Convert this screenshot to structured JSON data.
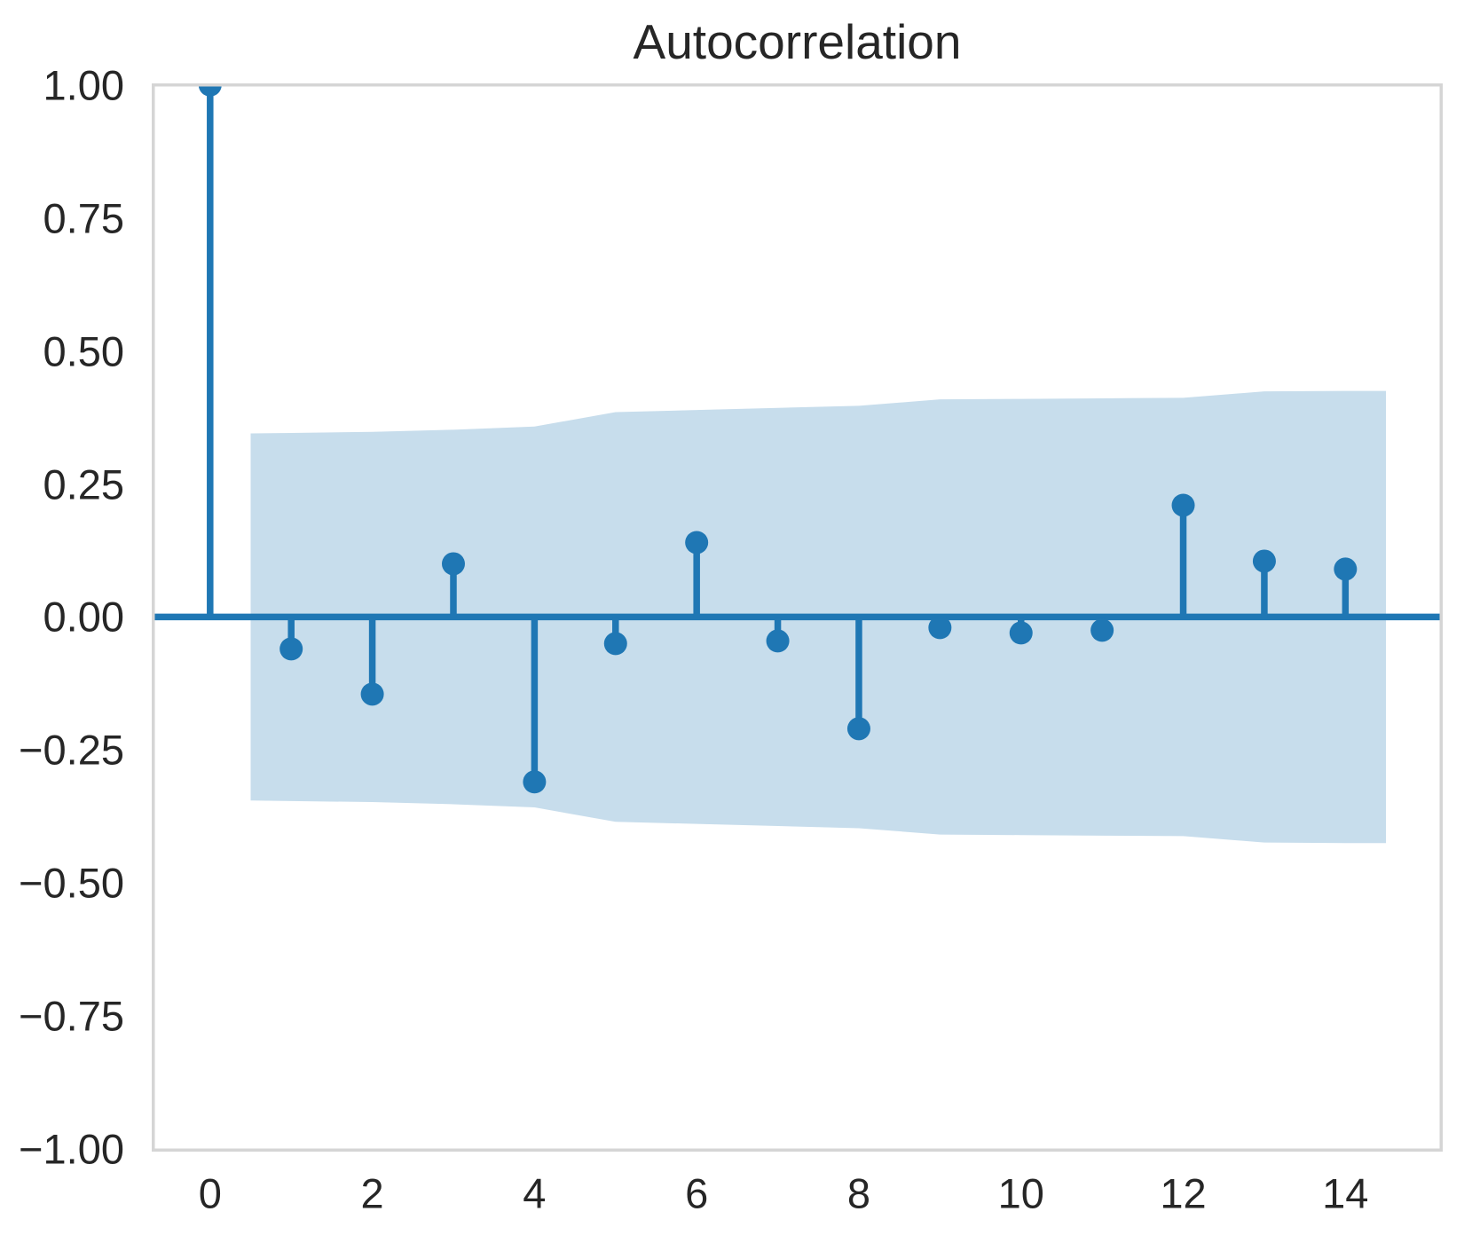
{
  "chart_data": {
    "type": "stem",
    "title": "Autocorrelation",
    "xlabel": "",
    "ylabel": "",
    "grid": false,
    "legend": null,
    "x": [
      0,
      1,
      2,
      3,
      4,
      5,
      6,
      7,
      8,
      9,
      10,
      11,
      12,
      13,
      14
    ],
    "values": [
      1.0,
      -0.06,
      -0.145,
      0.1,
      -0.31,
      -0.05,
      0.14,
      -0.045,
      -0.21,
      -0.02,
      -0.03,
      -0.025,
      0.21,
      0.105,
      0.09
    ],
    "confidence_band": {
      "x": [
        0.5,
        1,
        2,
        3,
        4,
        5,
        6,
        7,
        8,
        9,
        10,
        11,
        12,
        13,
        14,
        14.5
      ],
      "upper": [
        0.345,
        0.346,
        0.348,
        0.352,
        0.358,
        0.385,
        0.389,
        0.393,
        0.397,
        0.409,
        0.41,
        0.411,
        0.412,
        0.424,
        0.425,
        0.425
      ],
      "lower": [
        -0.345,
        -0.346,
        -0.348,
        -0.352,
        -0.358,
        -0.385,
        -0.389,
        -0.393,
        -0.397,
        -0.409,
        -0.41,
        -0.411,
        -0.412,
        -0.424,
        -0.425,
        -0.425
      ]
    },
    "xlim": [
      -0.72,
      15.2
    ],
    "ylim": [
      -1.005,
      1.003
    ],
    "xticks": {
      "values": [
        0,
        2,
        4,
        6,
        8,
        10,
        12,
        14
      ],
      "labels": [
        "0",
        "2",
        "4",
        "6",
        "8",
        "10",
        "12",
        "14"
      ]
    },
    "yticks": {
      "values": [
        1.0,
        0.75,
        0.5,
        0.25,
        0.0,
        -0.25,
        -0.5,
        -0.75,
        -1.0
      ],
      "labels": [
        "1.00",
        "0.75",
        "0.50",
        "0.25",
        "0.00",
        "−0.25",
        "−0.50",
        "−0.75",
        "−1.00"
      ]
    },
    "colors": {
      "stem": "#1f77b4",
      "band": "#c7ddec",
      "border": "#d5d5d5",
      "text": "#262626",
      "background": "#ffffff"
    },
    "marker_radius": 13,
    "stem_width": 7.5
  }
}
